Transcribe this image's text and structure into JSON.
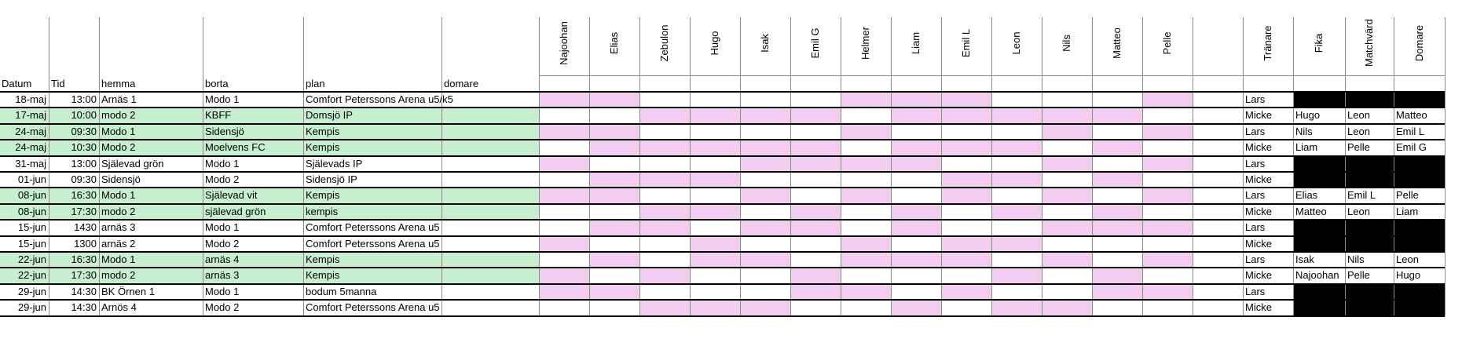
{
  "headers": {
    "datum": "Datum",
    "tid": "Tid",
    "hemma": "hemma",
    "borta": "borta",
    "plan": "plan",
    "domare": "domare"
  },
  "players": [
    "Najoohan",
    "Elias",
    "Zebulon",
    "Hugo",
    "Isak",
    "Emil G",
    "Helmer",
    "Liam",
    "Emil L",
    "Leon",
    "Nils",
    "Matteo",
    "Pelle"
  ],
  "roles": [
    "Tränare",
    "Fika",
    "Matchvärd",
    "Domare"
  ],
  "colors": {
    "match_highlight": "#c6efce",
    "player_marked": "#f2cdf0",
    "blackout": "#000000",
    "grid": "#8a8a8a"
  },
  "rows": [
    {
      "datum": "18-maj",
      "tid": "13:00",
      "hemma": "Arnäs 1",
      "borta": "Modo 1",
      "plan": "Comfort Peterssons Arena u5/k5",
      "domare": "",
      "green": false,
      "marks": [
        1,
        1,
        0,
        0,
        0,
        0,
        1,
        1,
        1,
        0,
        0,
        0,
        1
      ],
      "tranare": "Lars",
      "fika": "",
      "matchvard": "",
      "domare_duty": "",
      "blackout": true
    },
    {
      "datum": "17-maj",
      "tid": "10:00",
      "hemma": "modo 2",
      "borta": "KBFF",
      "plan": "Domsjö IP",
      "domare": "",
      "green": true,
      "marks": [
        0,
        0,
        1,
        1,
        1,
        1,
        0,
        1,
        1,
        1,
        1,
        1,
        0
      ],
      "tranare": "Micke",
      "fika": "Hugo",
      "matchvard": "Leon",
      "domare_duty": "Matteo",
      "blackout": false
    },
    {
      "datum": "24-maj",
      "tid": "09:30",
      "hemma": "Modo 1",
      "borta": "Sidensjö",
      "plan": "Kempis",
      "domare": "",
      "green": true,
      "marks": [
        1,
        1,
        0,
        0,
        0,
        0,
        1,
        0,
        0,
        0,
        1,
        0,
        1
      ],
      "tranare": "Lars",
      "fika": "Nils",
      "matchvard": "Leon",
      "domare_duty": "Emil L",
      "blackout": false
    },
    {
      "datum": "24-maj",
      "tid": "10:30",
      "hemma": "Modo 2",
      "borta": "Moelvens FC",
      "plan": "Kempis",
      "domare": "",
      "green": true,
      "marks": [
        0,
        1,
        1,
        1,
        1,
        1,
        0,
        1,
        1,
        1,
        0,
        1,
        0
      ],
      "tranare": "Micke",
      "fika": "Liam",
      "matchvard": "Pelle",
      "domare_duty": "Emil G",
      "blackout": false
    },
    {
      "datum": "31-maj",
      "tid": "13:00",
      "hemma": "Själevad grön",
      "borta": "Modo 1",
      "plan": "Själevads IP",
      "domare": "",
      "green": false,
      "marks": [
        1,
        0,
        0,
        0,
        1,
        1,
        1,
        1,
        0,
        0,
        1,
        0,
        1
      ],
      "tranare": "Lars",
      "fika": "",
      "matchvard": "",
      "domare_duty": "",
      "blackout": true
    },
    {
      "datum": "01-jun",
      "tid": "09:30",
      "hemma": "Sidensjö",
      "borta": "Modo 2",
      "plan": "Sidensjö IP",
      "domare": "",
      "green": false,
      "marks": [
        0,
        1,
        1,
        1,
        0,
        0,
        0,
        0,
        1,
        1,
        0,
        1,
        0
      ],
      "tranare": "Micke",
      "fika": "",
      "matchvard": "",
      "domare_duty": "",
      "blackout": true
    },
    {
      "datum": "08-jun",
      "tid": "16:30",
      "hemma": "Modo 1",
      "borta": "Själevad vit",
      "plan": "Kempis",
      "domare": "",
      "green": true,
      "marks": [
        1,
        1,
        0,
        0,
        1,
        0,
        1,
        0,
        1,
        0,
        1,
        0,
        1
      ],
      "tranare": "Lars",
      "fika": "Elias",
      "matchvard": "Emil L",
      "domare_duty": "Pelle",
      "blackout": false
    },
    {
      "datum": "08-jun",
      "tid": "17:30",
      "hemma": "modo 2",
      "borta": "själevad grön",
      "plan": "kempis",
      "domare": "",
      "green": true,
      "marks": [
        0,
        0,
        1,
        1,
        0,
        1,
        0,
        1,
        0,
        1,
        0,
        1,
        0
      ],
      "tranare": "Micke",
      "fika": "Matteo",
      "matchvard": "Leon",
      "domare_duty": "Liam",
      "blackout": false
    },
    {
      "datum": "15-jun",
      "tid": "1430",
      "hemma": "arnäs 3",
      "borta": "Modo 1",
      "plan": "Comfort Peterssons Arena u5",
      "domare": "",
      "green": false,
      "marks": [
        0,
        1,
        1,
        0,
        1,
        1,
        0,
        1,
        0,
        0,
        1,
        1,
        1
      ],
      "tranare": "Lars",
      "fika": "",
      "matchvard": "",
      "domare_duty": "",
      "blackout": true
    },
    {
      "datum": "15-jun",
      "tid": "1300",
      "hemma": "arnäs 2",
      "borta": "Modo 2",
      "plan": "Comfort Peterssons Arena u5",
      "domare": "",
      "green": false,
      "marks": [
        1,
        0,
        0,
        1,
        0,
        0,
        1,
        0,
        1,
        1,
        0,
        0,
        0
      ],
      "tranare": "Micke",
      "fika": "",
      "matchvard": "",
      "domare_duty": "",
      "blackout": true
    },
    {
      "datum": "22-jun",
      "tid": "16:30",
      "hemma": "Modo 1",
      "borta": "arnäs 4",
      "plan": "Kempis",
      "domare": "",
      "green": true,
      "marks": [
        0,
        1,
        0,
        1,
        1,
        0,
        1,
        1,
        1,
        0,
        1,
        0,
        1
      ],
      "tranare": "Lars",
      "fika": "Isak",
      "matchvard": "Nils",
      "domare_duty": "Leon",
      "blackout": false
    },
    {
      "datum": "22-jun",
      "tid": "17:30",
      "hemma": "modo 2",
      "borta": "arnäs 3",
      "plan": "Kempis",
      "domare": "",
      "green": true,
      "marks": [
        1,
        0,
        1,
        0,
        0,
        1,
        0,
        0,
        0,
        1,
        0,
        1,
        0
      ],
      "tranare": "Micke",
      "fika": "Najoohan",
      "matchvard": "Pelle",
      "domare_duty": "Hugo",
      "blackout": false
    },
    {
      "datum": "29-jun",
      "tid": "14:30",
      "hemma": "BK Örnen 1",
      "borta": "Modo 1",
      "plan": "bodum 5manna",
      "domare": "",
      "green": false,
      "marks": [
        1,
        1,
        0,
        0,
        0,
        1,
        1,
        0,
        1,
        0,
        0,
        1,
        1
      ],
      "tranare": "Lars",
      "fika": "",
      "matchvard": "",
      "domare_duty": "",
      "blackout": true
    },
    {
      "datum": "29-jun",
      "tid": "14:30",
      "hemma": "Arnös 4",
      "borta": "Modo 2",
      "plan": "Comfort Peterssons Arena u5",
      "domare": "",
      "green": false,
      "marks": [
        0,
        0,
        1,
        1,
        1,
        0,
        0,
        1,
        0,
        1,
        1,
        0,
        0
      ],
      "tranare": "Micke",
      "fika": "",
      "matchvard": "",
      "domare_duty": "",
      "blackout": true
    }
  ]
}
